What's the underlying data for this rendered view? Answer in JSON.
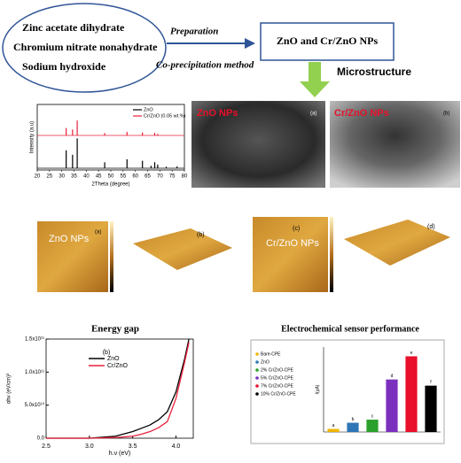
{
  "flow": {
    "inputs": [
      "Zinc acetate dihydrate",
      "Chromium nitrate nonahydrate",
      "Sodium hydroxide"
    ],
    "step_top": "Preparation",
    "step_bottom": "Co-precipitation method",
    "product": "ZnO and Cr/ZnO NPs",
    "next": "Microstructure"
  },
  "microscopy": {
    "tem_left_label": "ZnO NPs",
    "tem_left_panel": "(a)",
    "tem_right_label": "Cr/ZnO NPs",
    "tem_right_panel": "(b)",
    "afm_left_label": "ZnO NPs",
    "afm_panels": [
      "(a)",
      "(b)",
      "(c)",
      "(d)"
    ],
    "afm_right_label": "Cr/ZnO NPs"
  },
  "chart_data": [
    {
      "type": "stick",
      "y_label": "Intensity (a.u)",
      "x_label": "2Theta (degree)",
      "xlim": [
        20,
        80
      ],
      "xticks": [
        20,
        25,
        30,
        35,
        40,
        45,
        50,
        55,
        60,
        65,
        70,
        75,
        80
      ],
      "ylim": [
        0,
        2.2
      ],
      "series": [
        {
          "name": "ZnO",
          "color": "#000000",
          "x": [
            31.8,
            34.4,
            36.3,
            47.5,
            56.6,
            62.9,
            66.4,
            67.9,
            69.1,
            72.6,
            77.0
          ],
          "values": [
            0.6,
            0.45,
            1.0,
            0.2,
            0.3,
            0.25,
            0.08,
            0.2,
            0.12,
            0.05,
            0.06
          ]
        },
        {
          "name": "Cr/ZnO (0.05 wt.%)",
          "color": "#e8203a",
          "x": [
            31.8,
            34.4,
            36.3,
            47.5,
            56.6,
            62.9,
            67.9,
            69.1
          ],
          "values": [
            0.25,
            0.2,
            0.5,
            0.08,
            0.12,
            0.1,
            0.09,
            0.05
          ]
        }
      ]
    },
    {
      "type": "line",
      "title": "Energy gap",
      "y_label": "αhν (eV/cm)²",
      "x_label": "h.ν (eV)",
      "panel": "(b)",
      "xlim": [
        2.5,
        4.2
      ],
      "xticks": [
        {
          "value": 2.5,
          "label": "2.5"
        },
        {
          "value": 3.0,
          "label": "3.0"
        },
        {
          "value": 3.5,
          "label": "3.5"
        },
        {
          "value": 4.0,
          "label": "4.0"
        }
      ],
      "ylim": [
        0,
        150000000000.0
      ],
      "yticks": [
        {
          "value": 0,
          "label": "0.0"
        },
        {
          "value": 50000000000.0,
          "label": "5.0x10¹⁰"
        },
        {
          "value": 100000000000.0,
          "label": "1.0x10¹¹"
        },
        {
          "value": 150000000000.0,
          "label": "1.5x10¹¹"
        }
      ],
      "x": [
        2.5,
        3.0,
        3.3,
        3.5,
        3.6,
        3.7,
        3.8,
        3.9,
        4.0,
        4.1,
        4.15
      ],
      "series": [
        {
          "name": "ZnO",
          "color": "#000000",
          "values": [
            0,
            0,
            3000000000.0,
            10000000000.0,
            15000000000.0,
            20000000000.0,
            28000000000.0,
            40000000000.0,
            70000000000.0,
            120000000000.0,
            150000000000.0
          ]
        },
        {
          "name": "Cr/ZnO",
          "color": "#e8203a",
          "values": [
            0,
            0,
            1000000000.0,
            3000000000.0,
            6000000000.0,
            10000000000.0,
            16000000000.0,
            25000000000.0,
            60000000000.0,
            115000000000.0,
            145000000000.0
          ]
        }
      ]
    },
    {
      "type": "bar",
      "title": "Electrochemical sensor performance",
      "y_label": "I(µA)",
      "ylim": [
        0,
        0.55
      ],
      "categories": [
        "Bare-CPE",
        "ZnO",
        "2% Cr/ZnO-CPE",
        "5% Cr/ZnO-CPE",
        "7% Cr/ZnO-CPE",
        "10% Cr/ZnO-CPE"
      ],
      "colors": [
        "#f0b400",
        "#2e75b6",
        "#2ca02c",
        "#7b2fbf",
        "#e8102a",
        "#000000"
      ],
      "values": [
        0.02,
        0.06,
        0.08,
        0.34,
        0.49,
        0.3
      ],
      "value_labels": [
        "a",
        "b",
        "c",
        "d",
        "e",
        "f"
      ]
    }
  ]
}
